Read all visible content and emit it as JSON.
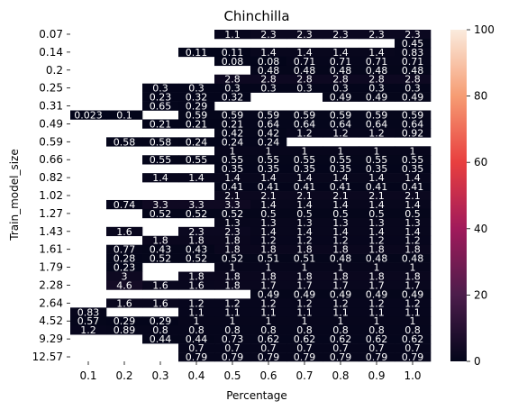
{
  "chart_data": {
    "type": "heatmap",
    "title": "Chinchilla",
    "xlabel": "Percentage",
    "ylabel": "Train_model_size",
    "x_categories": [
      "0.1",
      "0.2",
      "0.3",
      "0.4",
      "0.5",
      "0.6",
      "0.7",
      "0.8",
      "0.9",
      "1.0"
    ],
    "y_tick_labels": [
      "0.07",
      "0.14",
      "0.2",
      "0.25",
      "0.31",
      "0.49",
      "0.59",
      "0.66",
      "0.82",
      "1.02",
      "1.27",
      "1.43",
      "1.61",
      "1.79",
      "2.28",
      "2.64",
      "4.52",
      "9.29",
      "12.57"
    ],
    "y_tick_rows": [
      0,
      2,
      4,
      6,
      8,
      10,
      12,
      14,
      16,
      18,
      20,
      22,
      24,
      26,
      28,
      30,
      32,
      34,
      36
    ],
    "row_count": 37,
    "colorbar": {
      "min": 0,
      "max": 100,
      "ticks": [
        0,
        20,
        40,
        60,
        80,
        100
      ]
    },
    "values": [
      [
        null,
        null,
        null,
        null,
        1.1,
        2.3,
        2.3,
        2.3,
        2.3,
        2.3
      ],
      [
        null,
        null,
        null,
        null,
        null,
        null,
        null,
        null,
        null,
        0.45
      ],
      [
        null,
        null,
        null,
        0.11,
        0.11,
        1.4,
        1.4,
        1.4,
        1.4,
        0.83
      ],
      [
        null,
        null,
        null,
        null,
        0.08,
        0.08,
        0.71,
        0.71,
        0.71,
        0.71
      ],
      [
        null,
        null,
        null,
        null,
        null,
        0.48,
        0.48,
        0.48,
        0.48,
        0.48
      ],
      [
        null,
        null,
        null,
        null,
        2.8,
        2.8,
        2.8,
        2.8,
        2.8,
        2.8
      ],
      [
        null,
        null,
        0.3,
        0.3,
        0.3,
        0.3,
        0.3,
        0.3,
        0.3,
        0.3
      ],
      [
        null,
        null,
        0.23,
        0.32,
        0.32,
        null,
        null,
        0.49,
        0.49,
        0.49
      ],
      [
        null,
        null,
        0.65,
        0.29,
        null,
        null,
        null,
        null,
        null,
        null
      ],
      [
        0.023,
        0.1,
        null,
        0.59,
        0.59,
        0.59,
        0.59,
        0.59,
        0.59,
        0.59
      ],
      [
        null,
        null,
        0.21,
        0.21,
        0.21,
        0.64,
        0.64,
        0.64,
        0.64,
        0.64
      ],
      [
        null,
        null,
        null,
        null,
        0.42,
        0.42,
        1.2,
        1.2,
        1.2,
        0.92
      ],
      [
        null,
        0.58,
        0.58,
        0.24,
        0.24,
        0.24,
        null,
        null,
        null,
        null
      ],
      [
        null,
        null,
        null,
        null,
        1,
        1,
        1,
        1,
        1,
        1
      ],
      [
        null,
        null,
        0.55,
        0.55,
        0.55,
        0.55,
        0.55,
        0.55,
        0.55,
        0.55
      ],
      [
        null,
        null,
        null,
        null,
        0.35,
        0.35,
        0.35,
        0.35,
        0.35,
        0.35
      ],
      [
        null,
        null,
        1.4,
        1.4,
        1.4,
        1.4,
        1.4,
        1.4,
        1.4,
        1.4
      ],
      [
        null,
        null,
        null,
        null,
        0.41,
        0.41,
        0.41,
        0.41,
        0.41,
        0.41
      ],
      [
        null,
        null,
        null,
        null,
        2.1,
        2.1,
        2.1,
        2.1,
        2.1,
        2.1
      ],
      [
        null,
        0.74,
        3.3,
        3.3,
        3.3,
        1.4,
        1.4,
        1.4,
        1.4,
        1.4
      ],
      [
        null,
        null,
        0.52,
        0.52,
        0.52,
        0.5,
        0.5,
        0.5,
        0.5,
        0.5
      ],
      [
        null,
        null,
        null,
        null,
        1.3,
        1.3,
        1.3,
        1.3,
        1.3,
        1.3
      ],
      [
        null,
        1.6,
        null,
        2.3,
        2.3,
        1.4,
        1.4,
        1.4,
        1.4,
        1.4
      ],
      [
        null,
        null,
        1.8,
        1.8,
        1.8,
        1.2,
        1.2,
        1.2,
        1.2,
        1.2
      ],
      [
        null,
        0.77,
        0.43,
        0.43,
        1.8,
        1.8,
        1.8,
        1.8,
        1.8,
        1.8
      ],
      [
        null,
        0.28,
        0.52,
        0.52,
        0.52,
        0.51,
        0.51,
        0.48,
        0.48,
        0.48
      ],
      [
        null,
        0.23,
        null,
        null,
        1,
        1,
        1,
        1,
        1,
        1
      ],
      [
        null,
        3,
        null,
        1.8,
        1.8,
        1.8,
        1.8,
        1.8,
        1.8,
        1.8
      ],
      [
        null,
        4.6,
        1.6,
        1.6,
        1.8,
        1.7,
        1.7,
        1.7,
        1.7,
        1.7
      ],
      [
        null,
        null,
        null,
        null,
        null,
        0.49,
        0.49,
        0.49,
        0.49,
        0.49
      ],
      [
        null,
        1.6,
        1.6,
        1.2,
        1.2,
        1.2,
        1.2,
        1.2,
        1.2,
        1.2
      ],
      [
        0.83,
        null,
        null,
        1.1,
        1.1,
        1.1,
        1.1,
        1.1,
        1.1,
        1.1
      ],
      [
        0.57,
        0.29,
        0.29,
        1,
        1,
        1,
        1,
        1,
        1,
        1
      ],
      [
        1.2,
        0.89,
        0.8,
        0.8,
        0.8,
        0.8,
        0.8,
        0.8,
        0.8,
        0.8
      ],
      [
        null,
        null,
        0.44,
        0.44,
        0.73,
        0.62,
        0.62,
        0.62,
        0.62,
        0.62
      ],
      [
        null,
        null,
        null,
        0.7,
        0.7,
        0.7,
        0.7,
        0.7,
        0.7,
        0.7
      ],
      [
        null,
        null,
        null,
        0.79,
        0.79,
        0.79,
        0.79,
        0.79,
        0.79,
        0.79
      ]
    ]
  }
}
